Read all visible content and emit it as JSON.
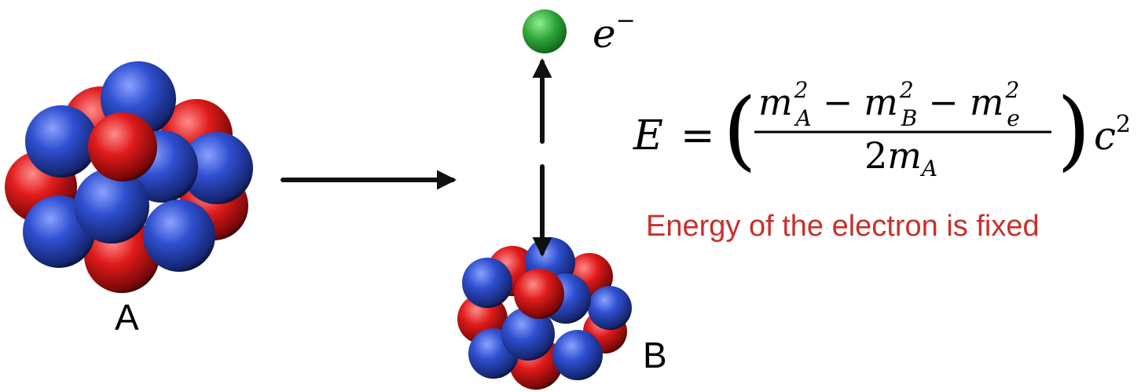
{
  "labels": {
    "nucleus_a": "A",
    "nucleus_b": "B",
    "electron": "e",
    "electron_charge": "−",
    "caption": "Energy of the electron is fixed"
  },
  "equation": {
    "lhs": "E",
    "equals": "=",
    "paren_open": "(",
    "paren_close": ")",
    "numerator": [
      {
        "base": "m",
        "sup": "2",
        "sub": "A"
      },
      {
        "op": "−"
      },
      {
        "base": "m",
        "sup": "2",
        "sub": "B"
      },
      {
        "op": "−"
      },
      {
        "base": "m",
        "sup": "2",
        "sub": "e"
      }
    ],
    "denominator": {
      "coef": "2",
      "base": "m",
      "sub": "A"
    },
    "factor": {
      "base": "c",
      "sup": "2"
    }
  },
  "colors": {
    "proton": "#e01b1b",
    "neutron": "#2f4fd0",
    "electron": "#2ea43a",
    "arrow": "#111111",
    "caption": "#c8302b"
  }
}
